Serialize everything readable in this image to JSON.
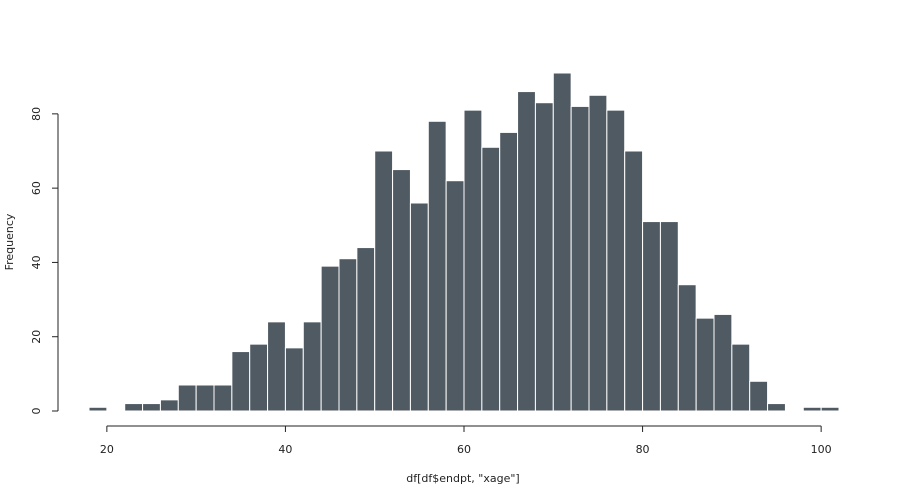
{
  "chart_data": {
    "type": "bar",
    "subtype": "histogram",
    "title": "",
    "xlabel": "df[df$endpt, \"xage\"]",
    "ylabel": "Frequency",
    "bin_width": 2,
    "bin_starts": [
      18,
      20,
      22,
      24,
      26,
      28,
      30,
      32,
      34,
      36,
      38,
      40,
      42,
      44,
      46,
      48,
      50,
      52,
      54,
      56,
      58,
      60,
      62,
      64,
      66,
      68,
      70,
      72,
      74,
      76,
      78,
      80,
      82,
      84,
      86,
      88,
      90,
      92,
      94,
      96,
      98,
      100
    ],
    "values": [
      1,
      0,
      2,
      2,
      3,
      7,
      7,
      7,
      16,
      18,
      24,
      17,
      24,
      39,
      41,
      44,
      70,
      65,
      56,
      78,
      62,
      81,
      71,
      75,
      86,
      83,
      91,
      82,
      85,
      81,
      70,
      51,
      51,
      34,
      25,
      26,
      18,
      8,
      2,
      0,
      1,
      1
    ],
    "xlim": [
      18,
      102
    ],
    "ylim": [
      0,
      91
    ],
    "x_ticks": [
      "20",
      "40",
      "60",
      "80",
      "100"
    ],
    "y_ticks": [
      "0",
      "20",
      "40",
      "60",
      "80"
    ],
    "bar_color": "#505a63",
    "bar_edge_color": "#ffffff",
    "grid": false
  }
}
